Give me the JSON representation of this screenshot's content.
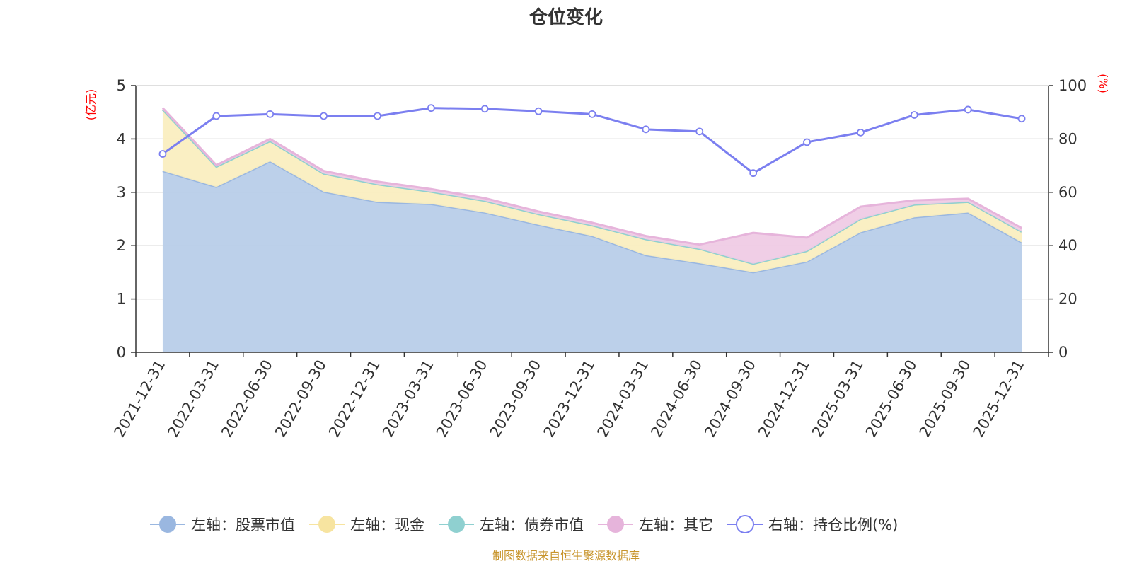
{
  "chart_data": {
    "type": "area",
    "title": "仓位变化",
    "categories": [
      "2021-12-31",
      "2022-03-31",
      "2022-06-30",
      "2022-09-30",
      "2022-12-31",
      "2023-03-31",
      "2023-06-30",
      "2023-09-30",
      "2023-12-31",
      "2024-03-31",
      "2024-06-30",
      "2024-09-30",
      "2024-12-31",
      "2025-03-31",
      "2025-06-30",
      "2025-09-30",
      "2025-12-31"
    ],
    "left_axis": {
      "unit": "(亿元)",
      "min": 0,
      "max": 5,
      "ticks": [
        "0",
        "1",
        "2",
        "3",
        "4",
        "5"
      ]
    },
    "right_axis": {
      "unit": "(%)",
      "min": 0,
      "max": 100,
      "ticks": [
        "0",
        "20",
        "40",
        "60",
        "80",
        "100"
      ]
    },
    "series": [
      {
        "name": "左轴：股票市值",
        "axis": "left",
        "stack": true,
        "color": "#9ab7e0",
        "fill": "#b8cde9",
        "values": [
          3.4,
          3.1,
          3.58,
          3.01,
          2.82,
          2.78,
          2.62,
          2.39,
          2.18,
          1.82,
          1.67,
          1.5,
          1.7,
          2.25,
          2.53,
          2.62,
          2.06
        ]
      },
      {
        "name": "左轴：现金",
        "axis": "left",
        "stack": true,
        "color": "#f7e4a0",
        "fill": "#faeec0",
        "values": [
          1.15,
          0.38,
          0.38,
          0.34,
          0.33,
          0.23,
          0.22,
          0.2,
          0.2,
          0.3,
          0.27,
          0.16,
          0.2,
          0.25,
          0.24,
          0.2,
          0.2
        ]
      },
      {
        "name": "左轴：债券市值",
        "axis": "left",
        "stack": true,
        "color": "#8fd0d0",
        "fill": "#b7e3e3",
        "values": [
          0,
          0,
          0,
          0,
          0,
          0,
          0,
          0,
          0,
          0,
          0,
          0,
          0,
          0,
          0,
          0,
          0
        ]
      },
      {
        "name": "左轴：其它",
        "axis": "left",
        "stack": true,
        "color": "#e6b4db",
        "fill": "#efcbe5",
        "values": [
          0.03,
          0.03,
          0.04,
          0.05,
          0.05,
          0.05,
          0.05,
          0.05,
          0.05,
          0.06,
          0.08,
          0.58,
          0.25,
          0.23,
          0.08,
          0.06,
          0.07
        ]
      },
      {
        "name": "右轴：持仓比例(%)",
        "axis": "right",
        "type": "line",
        "color": "#7b7ff0",
        "values": [
          74.4,
          88.6,
          89.3,
          88.6,
          88.6,
          91.6,
          91.3,
          90.4,
          89.3,
          83.6,
          82.8,
          67.2,
          78.8,
          82.4,
          89.0,
          91.0,
          87.6
        ]
      }
    ],
    "legend_position": "bottom",
    "grid": true
  },
  "footer": {
    "source": "制图数据来自恒生聚源数据库"
  }
}
